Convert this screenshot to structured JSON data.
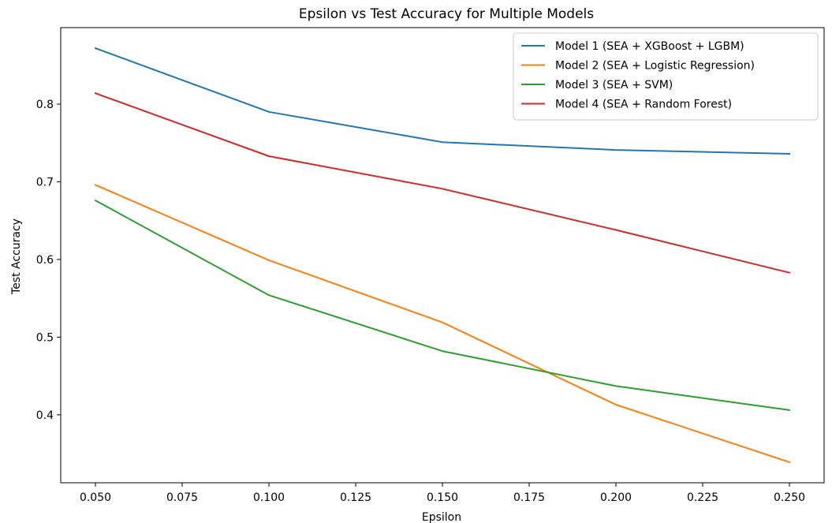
{
  "chart_data": {
    "type": "line",
    "title": "Epsilon vs Test Accuracy for Multiple Models",
    "xlabel": "Epsilon",
    "ylabel": "Test Accuracy",
    "x": [
      0.05,
      0.1,
      0.15,
      0.2,
      0.25
    ],
    "xlim": [
      0.04,
      0.26
    ],
    "ylim": [
      0.3125,
      0.8985
    ],
    "xticks": [
      "0.050",
      "0.075",
      "0.100",
      "0.125",
      "0.150",
      "0.175",
      "0.200",
      "0.225",
      "0.250"
    ],
    "yticks": [
      "0.4",
      "0.5",
      "0.6",
      "0.7",
      "0.8"
    ],
    "grid": false,
    "legend_position": "top-right",
    "series": [
      {
        "name": "Model 1 (SEA + XGBoost + LGBM)",
        "color": "#1f77b4",
        "values": [
          0.872,
          0.79,
          0.751,
          0.741,
          0.736
        ]
      },
      {
        "name": "Model 2 (SEA + Logistic Regression)",
        "color": "#ff7f0e",
        "values": [
          0.696,
          0.599,
          0.519,
          0.413,
          0.339
        ]
      },
      {
        "name": "Model 3 (SEA + SVM)",
        "color": "#2ca02c",
        "values": [
          0.676,
          0.554,
          0.482,
          0.437,
          0.406
        ]
      },
      {
        "name": "Model 4 (SEA + Random Forest)",
        "color": "#d62728",
        "values": [
          0.814,
          0.733,
          0.691,
          0.638,
          0.583
        ]
      }
    ]
  }
}
